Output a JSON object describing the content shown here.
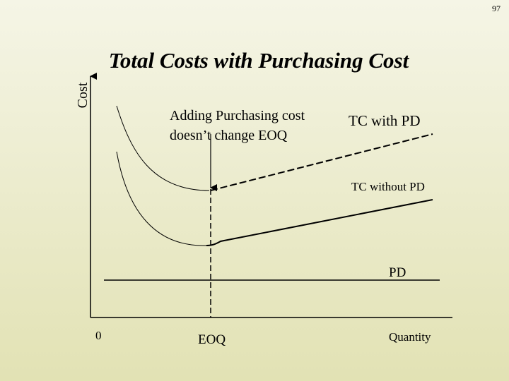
{
  "page_number": "97",
  "title": "Total Costs with Purchasing Cost",
  "y_axis_label": "Cost",
  "note": [
    "Adding Purchasing cost",
    "doesn’t change EOQ"
  ],
  "curves": {
    "tc_with_pd": "TC with PD",
    "tc_without_pd": "TC without PD",
    "pd": "PD"
  },
  "x_axis": {
    "origin": "0",
    "eoq": "EOQ",
    "label": "Quantity"
  }
}
